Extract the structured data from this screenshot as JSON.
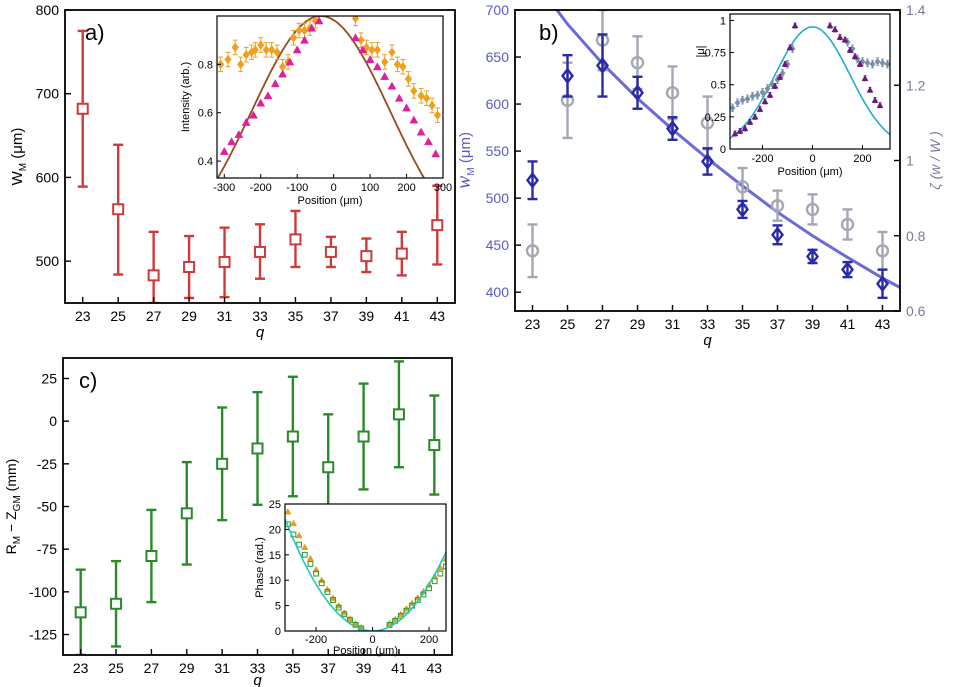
{
  "chart_data": [
    {
      "panel": "a)",
      "type": "scatter",
      "xlabel": "q",
      "ylabel_main": "W",
      "ylabel_sub": "M",
      "ylabel_tail": " (μm)",
      "xlim": [
        22,
        44
      ],
      "ylim": [
        450,
        800
      ],
      "xticks": [
        "23",
        "25",
        "27",
        "29",
        "31",
        "33",
        "35",
        "37",
        "39",
        "41",
        "43"
      ],
      "yticks": [
        "500",
        "600",
        "700",
        "800"
      ],
      "colors": {
        "main": "#d03a3a"
      },
      "series": [
        {
          "marker": "square",
          "x": [
            23,
            25,
            27,
            29,
            31,
            33,
            35,
            37,
            39,
            41,
            43
          ],
          "y": [
            682,
            562,
            483,
            493,
            499,
            511,
            526,
            511,
            506,
            509,
            543
          ],
          "err_lo": [
            93,
            78,
            33,
            37,
            42,
            32,
            33,
            18,
            19,
            26,
            47
          ],
          "err_hi": [
            93,
            77,
            52,
            37,
            41,
            33,
            34,
            18,
            21,
            26,
            47
          ]
        }
      ],
      "inset": {
        "xlabel": "Position (μm)",
        "ylabel": "Intensity (arb.)",
        "xlim": [
          -320,
          300
        ],
        "ylim": [
          0.33,
          1.0
        ],
        "xticks": [
          "-300",
          "-200",
          "-100",
          "0",
          "100",
          "200",
          "300"
        ],
        "yticks": [
          "0.4",
          "0.6",
          "0.8"
        ],
        "colors": {
          "fit": "#9a4a1a",
          "orange": "#f0a020",
          "magenta": "#e0209a"
        },
        "fit": {
          "type": "gaussian",
          "center": -35,
          "sigma": 190,
          "amplitude": 1.0
        },
        "series": [
          {
            "marker": "diamond",
            "color": "orange",
            "x": [
              -310,
              -290,
              -270,
              -255,
              -240,
              -225,
              -215,
              -200,
              -185,
              -170,
              -155,
              -140,
              -125,
              -110,
              -95,
              -80,
              -65,
              -50,
              60,
              75,
              90,
              105,
              120,
              140,
              160,
              175,
              190,
              205,
              220,
              240,
              255,
              270,
              285
            ],
            "y": [
              0.8,
              0.82,
              0.87,
              0.8,
              0.84,
              0.85,
              0.86,
              0.88,
              0.86,
              0.86,
              0.85,
              0.79,
              0.81,
              0.91,
              0.94,
              0.94,
              0.95,
              0.98,
              0.99,
              0.9,
              0.87,
              0.86,
              0.86,
              0.81,
              0.85,
              0.8,
              0.79,
              0.74,
              0.69,
              0.67,
              0.66,
              0.63,
              0.59
            ]
          },
          {
            "marker": "triangle",
            "color": "magenta",
            "x": [
              -300,
              -280,
              -260,
              -240,
              -220,
              -200,
              -180,
              -160,
              -140,
              -120,
              -100,
              -80,
              -60,
              -40,
              60,
              80,
              100,
              120,
              140,
              160,
              180,
              200,
              220,
              240,
              260,
              280
            ],
            "y": [
              0.44,
              0.48,
              0.51,
              0.56,
              0.59,
              0.64,
              0.67,
              0.72,
              0.76,
              0.81,
              0.86,
              0.9,
              0.95,
              0.98,
              0.91,
              0.86,
              0.82,
              0.79,
              0.75,
              0.71,
              0.66,
              0.62,
              0.57,
              0.52,
              0.48,
              0.43
            ]
          }
        ]
      }
    },
    {
      "panel": "b)",
      "type": "scatter",
      "xlabel": "q",
      "ylabel_left_main": "w",
      "ylabel_left_sub": "M",
      "ylabel_left_tail": " (μm)",
      "ylabel_right": "ζ (w  / W  )",
      "ylabel_right_sub": "M",
      "xlim": [
        22,
        44
      ],
      "ylim_left": [
        380,
        700
      ],
      "ylim_right": [
        0.6,
        1.4
      ],
      "xticks": [
        "23",
        "25",
        "27",
        "29",
        "31",
        "33",
        "35",
        "37",
        "39",
        "41",
        "43"
      ],
      "yticks_left": [
        "400",
        "450",
        "500",
        "550",
        "600",
        "650",
        "700"
      ],
      "yticks_right": [
        "0.6",
        "0.8",
        "1",
        "1.2",
        "1.4"
      ],
      "colors": {
        "blue": "#2a2aa8",
        "fit": "#6a6ad8",
        "gray": "#a6a6b4",
        "axis_left": "#5a5ac8",
        "axis_right": "#7a7a9a"
      },
      "fit": {
        "x": [
          23,
          25,
          27,
          29,
          31,
          33,
          35,
          37,
          39,
          41,
          43,
          44
        ],
        "y": [
          735,
          685,
          643,
          606,
          573,
          542,
          513,
          485,
          460,
          437,
          415,
          405
        ]
      },
      "series": [
        {
          "marker": "diamond",
          "color": "blue",
          "axis": "left",
          "x": [
            23,
            25,
            27,
            29,
            31,
            33,
            35,
            37,
            39,
            41,
            43
          ],
          "y": [
            519,
            630,
            641,
            612,
            574,
            539,
            488,
            461,
            438,
            424,
            409
          ],
          "err": [
            20,
            22,
            33,
            17,
            12,
            14,
            9,
            10,
            7,
            8,
            15
          ]
        },
        {
          "marker": "circle",
          "color": "gray",
          "axis": "right",
          "x": [
            23,
            25,
            27,
            29,
            31,
            33,
            35,
            37,
            39,
            41,
            43
          ],
          "y": [
            0.76,
            1.16,
            1.32,
            1.26,
            1.18,
            1.1,
            0.93,
            0.88,
            0.87,
            0.83,
            0.76
          ],
          "err": [
            0.07,
            0.1,
            0.08,
            0.07,
            0.07,
            0.07,
            0.05,
            0.04,
            0.04,
            0.04,
            0.05
          ]
        }
      ],
      "inset": {
        "xlabel": "Position (μm)",
        "ylabel": "|μ|",
        "xlim": [
          -330,
          310
        ],
        "ylim": [
          0.0,
          1.05
        ],
        "xticks": [
          "-200",
          "0",
          "200"
        ],
        "yticks": [
          "0",
          "0.25",
          "0.5",
          "0.75",
          "1"
        ],
        "colors": {
          "fit": "#20b0c8",
          "gray": "#7a90a8",
          "purple": "#6a1a7a"
        },
        "fit": {
          "type": "gaussian",
          "center": 0,
          "sigma": 150,
          "amplitude": 0.95
        },
        "series": [
          {
            "marker": "diamond",
            "color": "gray",
            "x": [
              -320,
              -300,
              -280,
              -260,
              -240,
              -220,
              -200,
              -180,
              -160,
              -140,
              -120,
              -100,
              -80,
              140,
              160,
              180,
              200,
              220,
              240,
              260,
              280,
              300
            ],
            "y": [
              0.32,
              0.36,
              0.38,
              0.39,
              0.41,
              0.42,
              0.44,
              0.47,
              0.5,
              0.54,
              0.59,
              0.66,
              0.78,
              0.83,
              0.78,
              0.7,
              0.68,
              0.67,
              0.66,
              0.68,
              0.67,
              0.66
            ],
            "err": [
              0.03,
              0.03,
              0.03,
              0.03,
              0.03,
              0.03,
              0.03,
              0.03,
              0.03,
              0.03,
              0.03,
              0.03,
              0.03,
              0.03,
              0.03,
              0.03,
              0.03,
              0.03,
              0.03,
              0.03,
              0.03,
              0.03
            ]
          },
          {
            "marker": "triangle",
            "color": "purple",
            "x": [
              -310,
              -290,
              -270,
              -250,
              -230,
              -210,
              -190,
              -170,
              -150,
              -130,
              -110,
              -90,
              -70,
              70,
              90,
              110,
              130,
              150,
              170,
              190,
              210,
              230,
              250,
              270
            ],
            "y": [
              0.12,
              0.14,
              0.16,
              0.21,
              0.25,
              0.31,
              0.37,
              0.42,
              0.49,
              0.56,
              0.66,
              0.79,
              0.96,
              0.96,
              0.93,
              0.87,
              0.85,
              0.77,
              0.72,
              0.66,
              0.55,
              0.46,
              0.38,
              0.34
            ],
            "err": [
              0.02,
              0.02,
              0.02,
              0.02,
              0.02,
              0.02,
              0.02,
              0.02,
              0.02,
              0.02,
              0.02,
              0.02,
              0.02,
              0.02,
              0.02,
              0.02,
              0.02,
              0.02,
              0.02,
              0.02,
              0.02,
              0.02,
              0.02,
              0.02
            ]
          }
        ]
      }
    },
    {
      "panel": "c)",
      "type": "scatter",
      "xlabel": "q",
      "ylabel_parts": [
        "R",
        "M",
        " − Z",
        "GM",
        " (mm)"
      ],
      "xlim": [
        22,
        44
      ],
      "ylim": [
        -137,
        37
      ],
      "xticks": [
        "23",
        "25",
        "27",
        "29",
        "31",
        "33",
        "35",
        "37",
        "39",
        "41",
        "43"
      ],
      "yticks": [
        "-125",
        "-100",
        "-75",
        "-50",
        "-25",
        "0",
        "25"
      ],
      "colors": {
        "main": "#2a8a2a"
      },
      "series": [
        {
          "marker": "square",
          "x": [
            23,
            25,
            27,
            29,
            31,
            33,
            35,
            37,
            39,
            41,
            43
          ],
          "y": [
            -112,
            -107,
            -79,
            -54,
            -25,
            -16,
            -9,
            -27,
            -9,
            4,
            -14
          ],
          "err": [
            25,
            25,
            27,
            30,
            33,
            33,
            35,
            31,
            31,
            31,
            29
          ]
        }
      ],
      "inset": {
        "xlabel": "Position (μm)",
        "ylabel": "Phase (rad.)",
        "xlim": [
          -310,
          260
        ],
        "ylim": [
          0,
          25
        ],
        "xticks": [
          "-200",
          "0",
          "200"
        ],
        "yticks": [
          "0",
          "5",
          "10",
          "15",
          "20",
          "25"
        ],
        "colors": {
          "fit": "#20c8c0",
          "orange": "#e0a020",
          "green": "#2a9a2a"
        },
        "fit": {
          "type": "parabola",
          "center": 0,
          "coef": 0.00023
        },
        "series": [
          {
            "marker": "triangle",
            "color": "orange",
            "x": [
              -300,
              -280,
              -260,
              -240,
              -220,
              -200,
              -180,
              -160,
              -140,
              -120,
              -100,
              -80,
              -60,
              -40,
              60,
              80,
              100,
              120,
              140,
              160,
              180,
              200,
              220,
              240,
              260
            ],
            "y": [
              23.5,
              21.2,
              18.8,
              16.5,
              14.3,
              12.1,
              10.0,
              8.2,
              6.5,
              5.0,
              3.6,
              2.4,
              1.4,
              0.7,
              1.5,
              2.3,
              3.3,
              4.4,
              5.5,
              6.6,
              7.8,
              9.1,
              10.8,
              12.5,
              14.2
            ]
          },
          {
            "marker": "square",
            "color": "green",
            "x": [
              -300,
              -280,
              -260,
              -240,
              -220,
              -200,
              -180,
              -160,
              -140,
              -120,
              -100,
              -80,
              -60,
              -40,
              60,
              80,
              100,
              120,
              140,
              160,
              180,
              200,
              220,
              240,
              260
            ],
            "y": [
              21.0,
              19.0,
              17.0,
              15.0,
              13.2,
              11.3,
              9.4,
              7.7,
              6.1,
              4.6,
              3.3,
              2.2,
              1.2,
              0.5,
              1.2,
              2.0,
              3.0,
              4.0,
              5.0,
              6.1,
              7.2,
              8.4,
              9.8,
              11.3,
              12.7
            ]
          }
        ]
      }
    }
  ]
}
